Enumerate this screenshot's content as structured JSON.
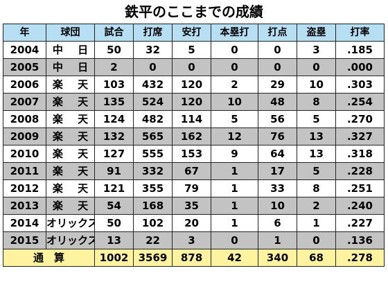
{
  "title": "鉄平のここまでの成績",
  "headers": [
    "年",
    "球団",
    "試合",
    "打席",
    "安打",
    "本塁打",
    "打点",
    "盗塁",
    "打率"
  ],
  "rows": [
    [
      "2004",
      "中 日",
      "50",
      "32",
      "5",
      "0",
      "0",
      "3",
      ".185"
    ],
    [
      "2005",
      "中 日",
      "2",
      "0",
      "0",
      "0",
      "0",
      "0",
      ".000"
    ],
    [
      "2006",
      "楽 天",
      "103",
      "432",
      "120",
      "2",
      "29",
      "10",
      ".303"
    ],
    [
      "2007",
      "楽 天",
      "135",
      "524",
      "120",
      "10",
      "48",
      "8",
      ".254"
    ],
    [
      "2008",
      "楽 天",
      "124",
      "482",
      "114",
      "5",
      "56",
      "5",
      ".270"
    ],
    [
      "2009",
      "楽 天",
      "132",
      "565",
      "162",
      "12",
      "76",
      "13",
      ".327"
    ],
    [
      "2010",
      "楽 天",
      "127",
      "555",
      "153",
      "9",
      "64",
      "13",
      ".318"
    ],
    [
      "2011",
      "楽 天",
      "91",
      "332",
      "67",
      "1",
      "17",
      "5",
      ".228"
    ],
    [
      "2012",
      "楽 天",
      "121",
      "355",
      "79",
      "1",
      "33",
      "8",
      ".251"
    ],
    [
      "2013",
      "楽 天",
      "54",
      "168",
      "35",
      "1",
      "10",
      "2",
      ".240"
    ],
    [
      "2014",
      "オリックス",
      "50",
      "102",
      "20",
      "1",
      "6",
      "1",
      ".227"
    ],
    [
      "2015",
      "オリックス",
      "13",
      "22",
      "3",
      "0",
      "1",
      "0",
      ".136"
    ]
  ],
  "total": [
    "通　算",
    "1002",
    "3569",
    "878",
    "42",
    "340",
    "68",
    ".278"
  ],
  "colors": {
    "header_bg": "#b7dff4",
    "row_odd_bg": "#ffffff",
    "row_even_bg": "#c3c3c3",
    "total_bg": "#fff3a0"
  }
}
